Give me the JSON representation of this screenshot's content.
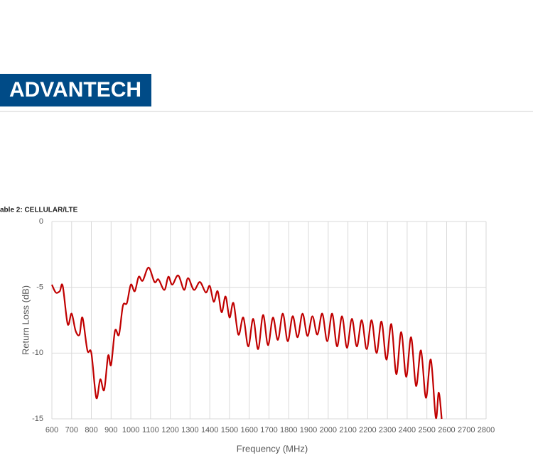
{
  "header": {
    "logo": "ADVANTECH"
  },
  "caption": "able 2: CELLULAR/LTE",
  "chart_data": {
    "type": "line",
    "x_label": "Frequency (MHz)",
    "y_label": "Return Loss (dB)",
    "xlim": [
      600,
      2800
    ],
    "xticks": [
      600,
      700,
      800,
      900,
      1000,
      1100,
      1200,
      1300,
      1400,
      1500,
      1600,
      1700,
      1800,
      1900,
      2000,
      2100,
      2200,
      2300,
      2400,
      2500,
      2600,
      2700,
      2800
    ],
    "ylim": [
      -15,
      0
    ],
    "yticks": [
      -15,
      -10,
      -5,
      0
    ],
    "grid": true,
    "series": [
      {
        "name": "CELLULAR/LTE",
        "color": "#c00000",
        "x": [
          600,
          620,
          640,
          655,
          680,
          700,
          720,
          740,
          755,
          780,
          800,
          825,
          845,
          865,
          885,
          900,
          920,
          940,
          960,
          980,
          1000,
          1020,
          1040,
          1060,
          1090,
          1120,
          1140,
          1170,
          1190,
          1210,
          1240,
          1270,
          1290,
          1320,
          1350,
          1380,
          1400,
          1420,
          1440,
          1460,
          1480,
          1500,
          1520,
          1545,
          1570,
          1595,
          1620,
          1645,
          1670,
          1695,
          1720,
          1745,
          1770,
          1795,
          1820,
          1845,
          1870,
          1895,
          1920,
          1945,
          1970,
          1995,
          2020,
          2045,
          2070,
          2095,
          2120,
          2145,
          2170,
          2195,
          2220,
          2245,
          2270,
          2295,
          2320,
          2345,
          2370,
          2395,
          2420,
          2445,
          2470,
          2495,
          2520,
          2545,
          2560,
          2575
        ],
        "values": [
          -4.8,
          -5.4,
          -5.3,
          -4.9,
          -7.8,
          -7.0,
          -8.3,
          -8.6,
          -7.3,
          -9.8,
          -10.0,
          -13.4,
          -12.0,
          -12.8,
          -10.2,
          -10.9,
          -8.3,
          -8.6,
          -6.4,
          -6.2,
          -4.8,
          -5.3,
          -4.2,
          -4.5,
          -3.5,
          -4.6,
          -4.4,
          -5.2,
          -4.2,
          -4.8,
          -4.1,
          -5.2,
          -4.3,
          -5.2,
          -4.6,
          -5.4,
          -4.9,
          -6.1,
          -5.3,
          -6.9,
          -5.7,
          -7.3,
          -6.2,
          -8.6,
          -7.3,
          -9.5,
          -7.4,
          -9.7,
          -7.1,
          -9.4,
          -7.3,
          -9.0,
          -7.0,
          -9.1,
          -7.2,
          -8.8,
          -7.0,
          -8.7,
          -7.2,
          -8.6,
          -7.0,
          -9.1,
          -7.0,
          -9.5,
          -7.2,
          -9.6,
          -7.4,
          -9.5,
          -7.5,
          -9.7,
          -7.5,
          -10.0,
          -7.6,
          -10.5,
          -7.8,
          -11.6,
          -8.4,
          -11.8,
          -8.8,
          -12.5,
          -9.8,
          -13.4,
          -10.5,
          -14.9,
          -13.0,
          -15.0
        ]
      }
    ]
  }
}
